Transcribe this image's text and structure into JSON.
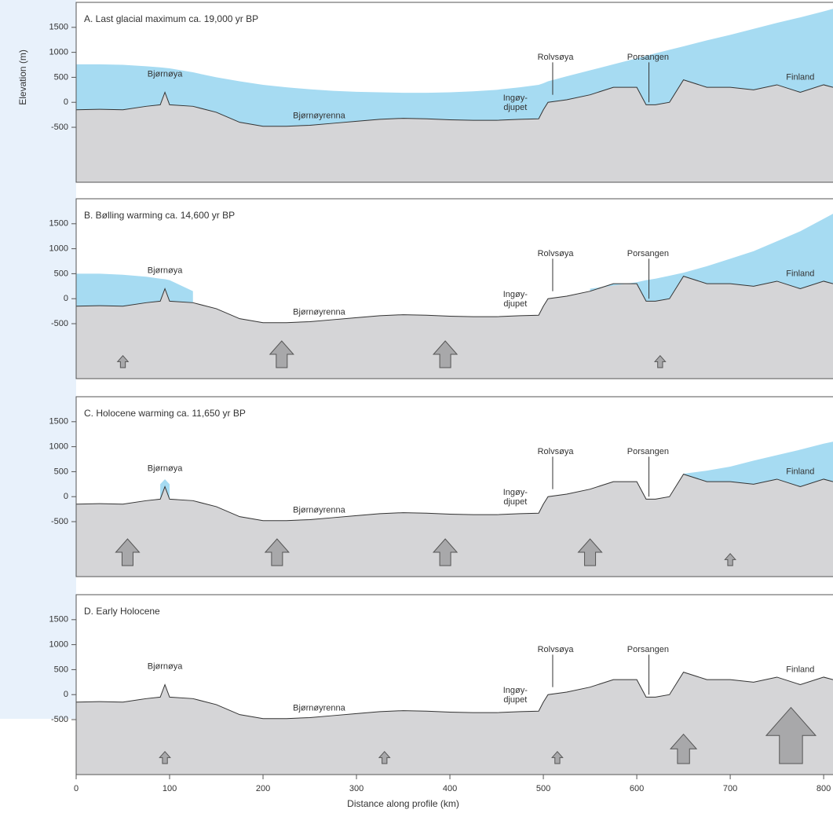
{
  "chart_data": [
    {
      "type": "profile",
      "title": "A. Last glacial maximum ca. 19,000 yr BP",
      "y_axis_label": "Elevation (m)",
      "x": [
        0,
        25,
        50,
        75,
        90,
        95,
        100,
        125,
        150,
        175,
        200,
        225,
        250,
        275,
        300,
        325,
        350,
        375,
        400,
        425,
        450,
        475,
        495,
        500,
        505,
        525,
        550,
        575,
        600,
        610,
        620,
        635,
        650,
        675,
        700,
        725,
        750,
        775,
        800,
        810
      ],
      "values": [
        -150,
        -140,
        -150,
        -80,
        -50,
        200,
        -50,
        -80,
        -200,
        -400,
        -480,
        -480,
        -460,
        -420,
        -380,
        -340,
        -320,
        -330,
        -350,
        -360,
        -360,
        -340,
        -330,
        -150,
        0,
        50,
        150,
        300,
        300,
        -50,
        -50,
        0,
        450,
        300,
        300,
        250,
        350,
        200,
        350,
        300
      ],
      "ice_values": [
        760,
        760,
        750,
        720,
        700,
        690,
        680,
        600,
        500,
        420,
        350,
        300,
        260,
        230,
        210,
        200,
        190,
        190,
        200,
        220,
        250,
        300,
        350,
        380,
        420,
        520,
        640,
        760,
        880,
        930,
        980,
        1050,
        1120,
        1240,
        1350,
        1470,
        1590,
        1700,
        1820,
        1870
      ],
      "color": "#d5d5d7",
      "ice_color": "#a6dbf2",
      "annotations": [
        "Bjørnøya",
        "Bjørnøyrenna",
        "Ingøy-",
        "djupet",
        "Rolvsøya",
        "Porsangen",
        "Finland"
      ],
      "xlim": [
        0,
        810
      ],
      "ylim": [
        -1600,
        2000
      ],
      "yticks": [
        1500,
        1000,
        500,
        0,
        -500
      ]
    },
    {
      "type": "profile",
      "title": "B. Bølling warming ca. 14,600 yr BP",
      "x": [
        0,
        25,
        50,
        75,
        90,
        95,
        100,
        125,
        150,
        175,
        200,
        225,
        250,
        275,
        300,
        325,
        350,
        375,
        400,
        425,
        450,
        475,
        495,
        500,
        505,
        525,
        550,
        575,
        600,
        610,
        620,
        635,
        650,
        675,
        700,
        725,
        750,
        775,
        800,
        810
      ],
      "values": [
        -150,
        -140,
        -150,
        -80,
        -50,
        200,
        -50,
        -80,
        -200,
        -400,
        -480,
        -480,
        -460,
        -420,
        -380,
        -340,
        -320,
        -330,
        -350,
        -360,
        -360,
        -340,
        -330,
        -150,
        0,
        50,
        150,
        300,
        300,
        -50,
        -50,
        0,
        450,
        300,
        300,
        250,
        350,
        200,
        350,
        300
      ],
      "ice_values": [
        500,
        500,
        480,
        440,
        400,
        390,
        370,
        150,
        null,
        null,
        null,
        null,
        null,
        null,
        null,
        null,
        null,
        null,
        null,
        null,
        null,
        null,
        null,
        null,
        null,
        null,
        200,
        260,
        330,
        370,
        400,
        460,
        520,
        650,
        800,
        950,
        1150,
        1350,
        1600,
        1700
      ],
      "color": "#d5d5d7",
      "ice_color": "#a6dbf2",
      "annotations": [
        "Bjørnøya",
        "Bjørnøyrenna",
        "Ingøy-",
        "djupet",
        "Rolvsøya",
        "Porsangen",
        "Finland"
      ],
      "xlim": [
        0,
        810
      ],
      "ylim": [
        -1600,
        2000
      ],
      "yticks": [
        1500,
        1000,
        500,
        0,
        -500
      ]
    },
    {
      "type": "profile",
      "title": "C. Holocene warming ca. 11,650 yr BP",
      "x": [
        0,
        25,
        50,
        75,
        90,
        95,
        100,
        125,
        150,
        175,
        200,
        225,
        250,
        275,
        300,
        325,
        350,
        375,
        400,
        425,
        450,
        475,
        495,
        500,
        505,
        525,
        550,
        575,
        600,
        610,
        620,
        635,
        650,
        675,
        700,
        725,
        750,
        775,
        800,
        810
      ],
      "values": [
        -150,
        -140,
        -150,
        -80,
        -50,
        200,
        -50,
        -80,
        -200,
        -400,
        -480,
        -480,
        -460,
        -420,
        -380,
        -340,
        -320,
        -330,
        -350,
        -360,
        -360,
        -340,
        -330,
        -150,
        0,
        50,
        150,
        300,
        300,
        -50,
        -50,
        0,
        450,
        300,
        300,
        250,
        350,
        200,
        350,
        300
      ],
      "ice_values": [
        null,
        null,
        null,
        null,
        250,
        350,
        250,
        null,
        null,
        null,
        null,
        null,
        null,
        null,
        null,
        null,
        null,
        null,
        null,
        null,
        null,
        null,
        null,
        null,
        null,
        null,
        null,
        null,
        null,
        null,
        null,
        null,
        460,
        520,
        600,
        720,
        830,
        940,
        1060,
        1100
      ],
      "color": "#d5d5d7",
      "ice_color": "#a6dbf2",
      "annotations": [
        "Bjørnøya",
        "Bjørnøyrenna",
        "Ingøy-",
        "djupet",
        "Rolvsøya",
        "Porsangen",
        "Finland"
      ],
      "xlim": [
        0,
        810
      ],
      "ylim": [
        -1600,
        2000
      ],
      "yticks": [
        1500,
        1000,
        500,
        0,
        -500
      ]
    },
    {
      "type": "profile",
      "title": "D. Early Holocene",
      "x_axis_label": "Distance along profile (km)",
      "x": [
        0,
        25,
        50,
        75,
        90,
        95,
        100,
        125,
        150,
        175,
        200,
        225,
        250,
        275,
        300,
        325,
        350,
        375,
        400,
        425,
        450,
        475,
        495,
        500,
        505,
        525,
        550,
        575,
        600,
        610,
        620,
        635,
        650,
        675,
        700,
        725,
        750,
        775,
        800,
        810
      ],
      "values": [
        -150,
        -140,
        -150,
        -80,
        -50,
        200,
        -50,
        -80,
        -200,
        -400,
        -480,
        -480,
        -460,
        -420,
        -380,
        -340,
        -320,
        -330,
        -350,
        -360,
        -360,
        -340,
        -330,
        -150,
        0,
        50,
        150,
        300,
        300,
        -50,
        -50,
        0,
        450,
        300,
        300,
        250,
        350,
        200,
        350,
        300
      ],
      "color": "#d5d5d7",
      "annotations": [
        "Bjørnøya",
        "Bjørnøyrenna",
        "Ingøy-",
        "djupet",
        "Rolvsøya",
        "Porsangen",
        "Finland"
      ],
      "xlim": [
        0,
        810
      ],
      "ylim": [
        -1600,
        2000
      ],
      "yticks": [
        1500,
        1000,
        500,
        0,
        -500
      ],
      "xticks": [
        0,
        100,
        200,
        300,
        400,
        500,
        600,
        700,
        800
      ]
    }
  ]
}
